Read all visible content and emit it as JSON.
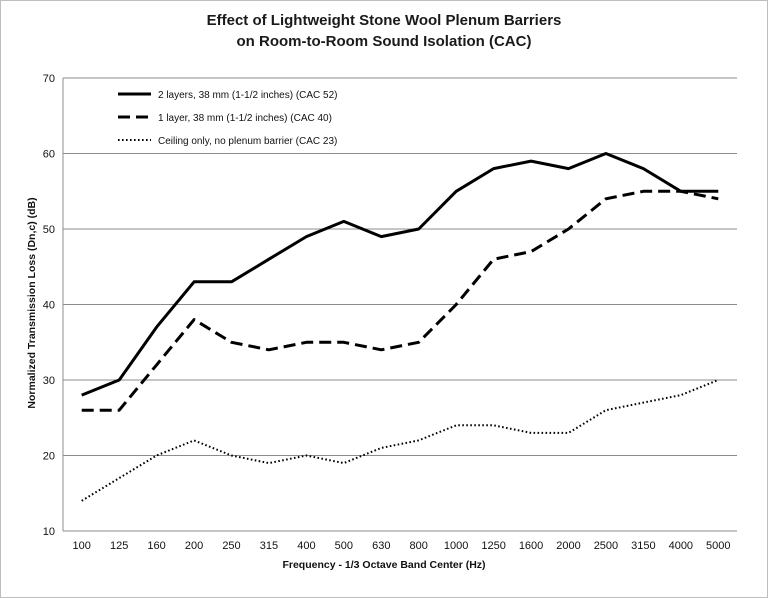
{
  "chart_data": {
    "type": "line",
    "title_line1": "Effect of Lightweight Stone Wool Plenum Barriers",
    "title_line2": "on Room-to-Room Sound Isolation (CAC)",
    "xlabel": "Frequency - 1/3 Octave Band Center (Hz)",
    "ylabel": "Normalized Transmission Loss (Dn,c) (dB)",
    "ylim": [
      10,
      70
    ],
    "yticks": [
      10,
      20,
      30,
      40,
      50,
      60,
      70
    ],
    "grid": true,
    "legend_position": "top-left",
    "categories": [
      "100",
      "125",
      "160",
      "200",
      "250",
      "315",
      "400",
      "500",
      "630",
      "800",
      "1000",
      "1250",
      "1600",
      "2000",
      "2500",
      "3150",
      "4000",
      "5000"
    ],
    "series": [
      {
        "name": "2 layers, 38 mm (1-1/2 inches) (CAC 52)",
        "style": "solid",
        "color": "#000000",
        "values": [
          28,
          30,
          37,
          43,
          43,
          46,
          49,
          51,
          49,
          50,
          55,
          58,
          59,
          58,
          60,
          58,
          55,
          55
        ]
      },
      {
        "name": "1 layer, 38 mm (1-1/2 inches) (CAC 40)",
        "style": "dashed",
        "color": "#000000",
        "values": [
          26,
          26,
          32,
          38,
          35,
          34,
          35,
          35,
          34,
          35,
          40,
          46,
          47,
          50,
          54,
          55,
          55,
          54
        ]
      },
      {
        "name": "Ceiling only, no plenum barrier (CAC 23)",
        "style": "dotted",
        "color": "#000000",
        "values": [
          14,
          17,
          20,
          22,
          20,
          19,
          20,
          19,
          21,
          22,
          24,
          24,
          23,
          23,
          26,
          27,
          28,
          30
        ]
      }
    ]
  }
}
